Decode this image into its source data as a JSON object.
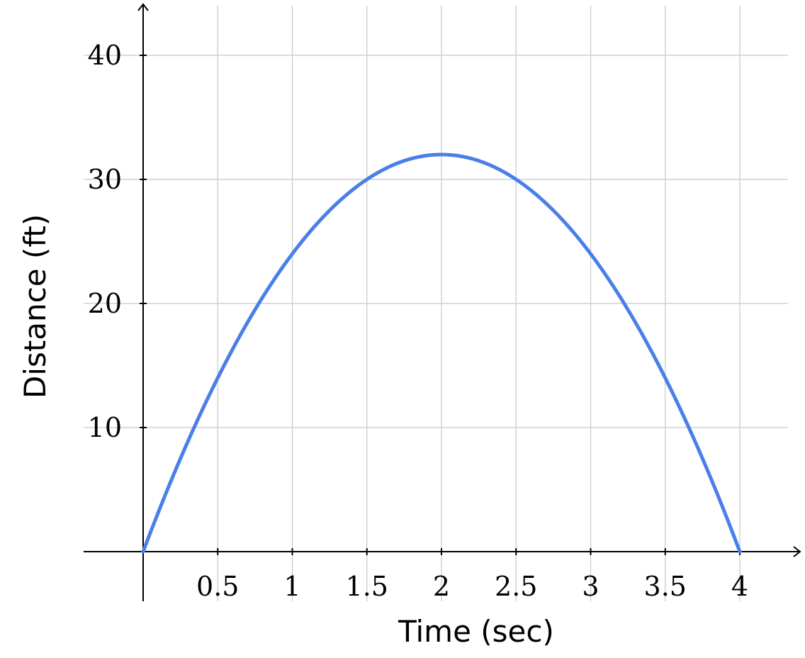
{
  "chart_data": {
    "type": "line",
    "xlabel": "Time (sec)",
    "ylabel": "Distance (ft)",
    "xlim": [
      0,
      4.4
    ],
    "ylim": [
      0,
      40
    ],
    "x_ticks": [
      0.5,
      1,
      1.5,
      2,
      2.5,
      3,
      3.5,
      4
    ],
    "x_tick_labels": [
      "0.5",
      "1",
      "1.5",
      "2",
      "2.5",
      "3",
      "3.5",
      "4"
    ],
    "y_ticks": [
      10,
      20,
      30,
      40
    ],
    "y_tick_labels": [
      "10",
      "20",
      "30",
      "40"
    ],
    "grid": true,
    "series": [
      {
        "color": "#4a7fe8",
        "x": [
          0,
          0.25,
          0.5,
          0.75,
          1,
          1.25,
          1.5,
          1.75,
          2,
          2.25,
          2.5,
          2.75,
          3,
          3.25,
          3.5,
          3.75,
          4
        ],
        "y": [
          0,
          7.5,
          14,
          19.5,
          24,
          27.5,
          30,
          31.5,
          32,
          31.5,
          30,
          27.5,
          24,
          19.5,
          14,
          7.5,
          0
        ]
      }
    ]
  }
}
